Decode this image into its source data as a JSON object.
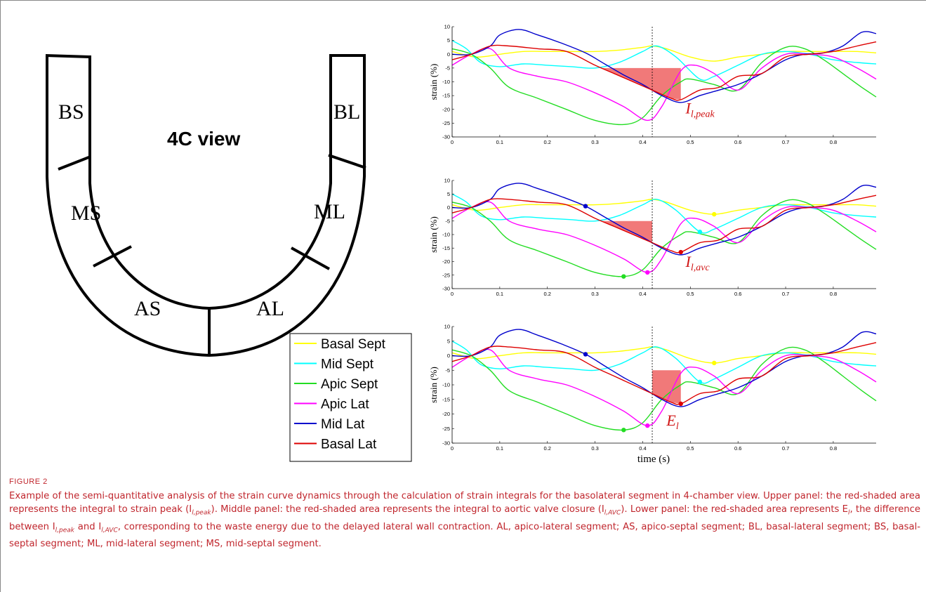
{
  "diagram": {
    "view_label": "4C view",
    "segments": [
      "BS",
      "MS",
      "AS",
      "AL",
      "ML",
      "BL"
    ]
  },
  "legend": {
    "entries": [
      {
        "label": "Basal Sept",
        "color": "#ffff00"
      },
      {
        "label": "Mid Sept",
        "color": "#00ffff"
      },
      {
        "label": "Apic Sept",
        "color": "#22dd22"
      },
      {
        "label": "Apic Lat",
        "color": "#ff00ff"
      },
      {
        "label": "Mid Lat",
        "color": "#0000cc"
      },
      {
        "label": "Basal Lat",
        "color": "#dd0000"
      }
    ]
  },
  "chart_data": [
    {
      "type": "line",
      "panel": "upper",
      "ylabel": "strain (%)",
      "xlabel": "",
      "annotation": {
        "base": "I",
        "sub": "l,peak"
      },
      "xlim": [
        0,
        0.89
      ],
      "ylim": [
        -30,
        10
      ],
      "xticks": [
        "0",
        "0.1",
        "0.2",
        "0.3",
        "0.4",
        "0.5",
        "0.6",
        "0.7",
        "0.8"
      ],
      "yticks": [
        "10",
        "5",
        "0",
        "-5",
        "-10",
        "-15",
        "-20",
        "-25",
        "-30"
      ],
      "avc_time": 0.42,
      "shaded": {
        "x0": 0.3,
        "x1": 0.48,
        "ytop": -5
      },
      "markers": false
    },
    {
      "type": "line",
      "panel": "middle",
      "ylabel": "strain (%)",
      "xlabel": "",
      "annotation": {
        "base": "I",
        "sub": "l,avc"
      },
      "xlim": [
        0,
        0.89
      ],
      "ylim": [
        -30,
        10
      ],
      "xticks": [
        "0",
        "0.1",
        "0.2",
        "0.3",
        "0.4",
        "0.5",
        "0.6",
        "0.7",
        "0.8"
      ],
      "yticks": [
        "10",
        "5",
        "0",
        "-5",
        "-10",
        "-15",
        "-20",
        "-25",
        "-30"
      ],
      "avc_time": 0.42,
      "shaded": {
        "x0": 0.3,
        "x1": 0.42,
        "ytop": -5
      },
      "markers": true
    },
    {
      "type": "line",
      "panel": "lower",
      "ylabel": "strain (%)",
      "xlabel": "time (s)",
      "annotation": {
        "base": "E",
        "sub": "l"
      },
      "xlim": [
        0,
        0.89
      ],
      "ylim": [
        -30,
        10
      ],
      "xticks": [
        "0",
        "0.1",
        "0.2",
        "0.3",
        "0.4",
        "0.5",
        "0.6",
        "0.7",
        "0.8"
      ],
      "yticks": [
        "10",
        "5",
        "0",
        "-5",
        "-10",
        "-15",
        "-20",
        "-25",
        "-30"
      ],
      "avc_time": 0.42,
      "shaded": {
        "x0": 0.42,
        "x1": 0.48,
        "ytop": -5
      },
      "markers": true
    }
  ],
  "series": [
    {
      "name": "Basal Sept",
      "color": "#ffff00",
      "x": [
        0,
        0.05,
        0.1,
        0.15,
        0.2,
        0.25,
        0.3,
        0.35,
        0.4,
        0.42,
        0.45,
        0.5,
        0.55,
        0.6,
        0.65,
        0.7,
        0.75,
        0.8,
        0.85,
        0.89
      ],
      "y": [
        1,
        -1,
        0,
        1,
        1,
        1,
        1,
        1.5,
        2.5,
        3,
        2,
        -1,
        -2.5,
        -1,
        0,
        1,
        1,
        1,
        1,
        0.5
      ],
      "marker": [
        0.55,
        -2.5
      ]
    },
    {
      "name": "Mid Sept",
      "color": "#00ffff",
      "x": [
        0,
        0.03,
        0.06,
        0.1,
        0.15,
        0.2,
        0.25,
        0.3,
        0.35,
        0.4,
        0.43,
        0.47,
        0.52,
        0.55,
        0.6,
        0.65,
        0.7,
        0.75,
        0.8,
        0.85,
        0.89
      ],
      "y": [
        5,
        2,
        -3,
        -4.5,
        -3.5,
        -4,
        -4.5,
        -5,
        -3,
        1,
        3,
        -1,
        -9,
        -8,
        -4,
        0,
        1,
        0,
        -2,
        -3,
        -3.5
      ],
      "marker": [
        0.52,
        -9
      ]
    },
    {
      "name": "Apic Sept",
      "color": "#22dd22",
      "x": [
        0,
        0.04,
        0.08,
        0.12,
        0.18,
        0.24,
        0.3,
        0.36,
        0.4,
        0.44,
        0.48,
        0.5,
        0.55,
        0.6,
        0.65,
        0.7,
        0.74,
        0.78,
        0.82,
        0.86,
        0.89
      ],
      "y": [
        2,
        0,
        -5,
        -12,
        -16,
        -20,
        -24,
        -25.5,
        -23,
        -15,
        -10,
        -9,
        -11,
        -13,
        -3,
        2.5,
        2,
        -2,
        -7,
        -12,
        -15.5
      ],
      "marker": [
        0.36,
        -25.5
      ]
    },
    {
      "name": "Apic Lat",
      "color": "#ff00ff",
      "x": [
        0,
        0.04,
        0.08,
        0.12,
        0.18,
        0.24,
        0.3,
        0.36,
        0.41,
        0.44,
        0.48,
        0.51,
        0.55,
        0.6,
        0.65,
        0.7,
        0.75,
        0.8,
        0.85,
        0.89
      ],
      "y": [
        -4,
        0,
        2,
        -5,
        -8,
        -10,
        -14,
        -19,
        -24,
        -19,
        -6,
        -4,
        -7,
        -13,
        -5,
        0,
        0,
        -1,
        -5,
        -9
      ],
      "marker": [
        0.41,
        -24
      ]
    },
    {
      "name": "Mid Lat",
      "color": "#0000cc",
      "x": [
        0,
        0.04,
        0.08,
        0.1,
        0.14,
        0.18,
        0.23,
        0.28,
        0.32,
        0.36,
        0.4,
        0.44,
        0.48,
        0.52,
        0.56,
        0.6,
        0.65,
        0.7,
        0.74,
        0.78,
        0.82,
        0.86,
        0.89
      ],
      "y": [
        0,
        0,
        3,
        7,
        9,
        7,
        4,
        0.5,
        -3.5,
        -7.5,
        -11,
        -15,
        -17.5,
        -15,
        -13,
        -11,
        -7,
        -2,
        0,
        0.5,
        3,
        8,
        7.5
      ],
      "marker": [
        0.28,
        0.5
      ]
    },
    {
      "name": "Basal Lat",
      "color": "#dd0000",
      "x": [
        0,
        0.04,
        0.08,
        0.12,
        0.18,
        0.24,
        0.3,
        0.34,
        0.38,
        0.42,
        0.46,
        0.48,
        0.52,
        0.56,
        0.6,
        0.65,
        0.7,
        0.75,
        0.8,
        0.85,
        0.89
      ],
      "y": [
        -2,
        0,
        3,
        3,
        2,
        1,
        -4,
        -7,
        -10,
        -13,
        -16,
        -16.5,
        -13,
        -12,
        -8,
        -7,
        -1,
        0,
        1,
        3,
        4.5
      ],
      "marker": [
        0.48,
        -16.5
      ]
    }
  ],
  "caption": {
    "figure_label": "FIGURE 2",
    "p1": "Example of the semi-quantitative analysis of the strain curve dynamics through the calculation of strain integrals for the basolateral segment in 4-chamber view. Upper panel: the red-shaded area represents the integral to strain peak (I",
    "s1": "l,peak",
    "p2": "). Middle panel: the red-shaded area represents the integral to aortic valve closure (I",
    "s2": "l,AVC",
    "p3": "). Lower panel: the red-shaded area represents E",
    "s3": "l",
    "p4": ", the difference between I",
    "s4": "l,peak",
    "p5": " and I",
    "s5": "l,AVC",
    "p6": ", corresponding to the waste energy due to the delayed lateral wall contraction. AL, apico-lateral segment; AS, apico-septal segment; BL, basal-lateral segment; BS, basal-septal segment; ML, mid-lateral segment; MS, mid-septal segment."
  }
}
